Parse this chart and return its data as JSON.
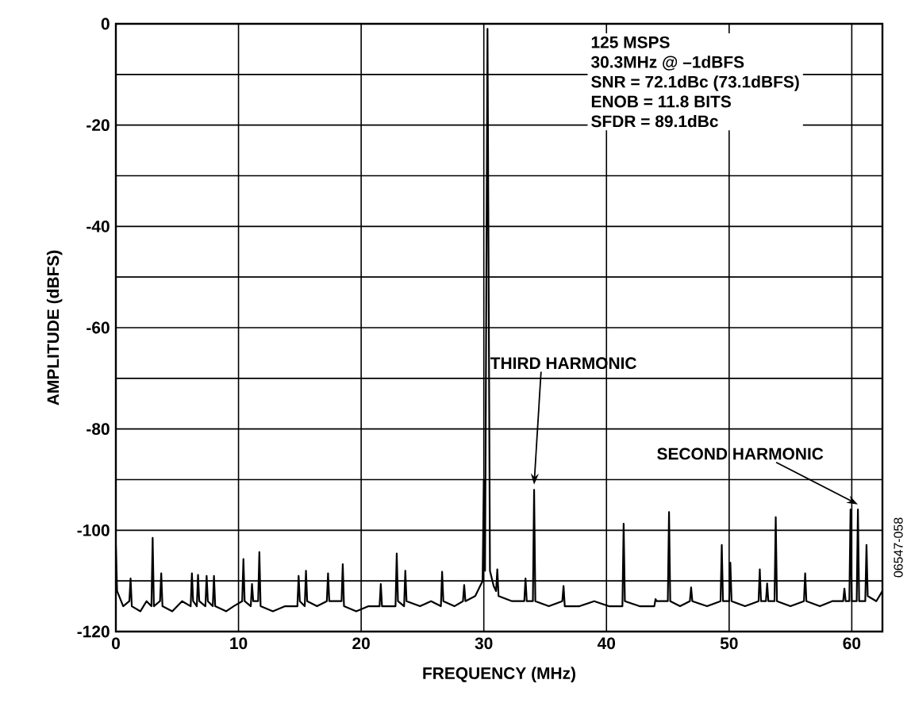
{
  "chart_data": {
    "type": "line",
    "xlabel": "FREQUENCY (MHz)",
    "ylabel": "AMPLITUDE (dBFS)",
    "xlim": [
      0,
      62.5
    ],
    "ylim": [
      -120,
      0
    ],
    "xticks": [
      0,
      10,
      20,
      30,
      40,
      50,
      60
    ],
    "yticks": [
      0,
      {
        "value": -10,
        "label": null
      },
      -20,
      {
        "value": -30,
        "label": null
      },
      -40,
      {
        "value": -50,
        "label": null
      },
      -60,
      {
        "value": -70,
        "label": null
      },
      -80,
      {
        "value": -90,
        "label": null
      },
      -100,
      {
        "value": -110,
        "label": null
      },
      -120
    ],
    "grid": true,
    "series": [
      {
        "color": "#000000",
        "x": [
          0,
          0.1,
          0.6,
          1.1,
          1.2,
          1.3,
          2.0,
          2.5,
          2.9,
          3.0,
          3.1,
          3.6,
          3.7,
          3.8,
          4.6,
          5.4,
          6.1,
          6.2,
          6.3,
          6.6,
          6.7,
          6.8,
          7.3,
          7.4,
          7.5,
          7.9,
          8.0,
          8.1,
          9.0,
          9.6,
          10.3,
          10.4,
          10.5,
          11.0,
          11.1,
          11.2,
          11.6,
          11.7,
          11.8,
          12.8,
          13.8,
          14.8,
          14.9,
          15.0,
          15.4,
          15.5,
          15.6,
          16.4,
          17.2,
          17.3,
          17.4,
          18.4,
          18.5,
          18.6,
          19.6,
          20.6,
          21.5,
          21.6,
          21.7,
          22.8,
          22.9,
          23.0,
          23.5,
          23.6,
          23.7,
          24.8,
          25.7,
          26.5,
          26.6,
          26.7,
          27.6,
          28.3,
          28.4,
          28.5,
          29.3,
          29.9,
          30.0,
          30.1,
          30.3,
          30.5,
          30.8,
          31.0,
          31.1,
          31.2,
          32.3,
          33.3,
          33.4,
          33.5,
          34.0,
          34.1,
          34.2,
          35.3,
          36.4,
          36.5,
          36.6,
          37.8,
          39.0,
          40.2,
          41.3,
          41.4,
          41.5,
          42.7,
          43.9,
          44.0,
          44.1,
          45.0,
          45.1,
          45.2,
          46.0,
          46.8,
          46.9,
          47.0,
          48.2,
          49.3,
          49.4,
          49.5,
          50.0,
          50.1,
          50.2,
          51.3,
          52.4,
          52.5,
          52.6,
          53.0,
          53.1,
          53.2,
          53.7,
          53.8,
          53.9,
          55.0,
          56.1,
          56.2,
          56.3,
          57.4,
          58.4,
          59.3,
          59.4,
          59.5,
          59.8,
          59.9,
          60.0,
          60.4,
          60.5,
          60.6,
          61.1,
          61.2,
          61.3,
          62.0,
          62.5
        ],
        "values": [
          -103,
          -112,
          -115,
          -114,
          -109.5,
          -115,
          -116,
          -114,
          -115,
          -101.5,
          -115,
          -114,
          -108.5,
          -115,
          -116,
          -114,
          -115,
          -108.5,
          -114,
          -115,
          -108.8,
          -114,
          -115,
          -109,
          -114,
          -115,
          -109,
          -115,
          -116,
          -115,
          -114,
          -105.7,
          -114,
          -115,
          -110.6,
          -114,
          -114,
          -104.3,
          -115,
          -116,
          -115,
          -115,
          -109,
          -114,
          -115,
          -108,
          -114,
          -115,
          -114,
          -108.5,
          -114,
          -114,
          -106.7,
          -115,
          -116,
          -115,
          -115,
          -110.6,
          -115,
          -115,
          -104.6,
          -114,
          -115,
          -108,
          -114,
          -115,
          -114,
          -115,
          -108.2,
          -114,
          -115,
          -114,
          -110.8,
          -114,
          -113,
          -110,
          -90,
          -108,
          -1,
          -108,
          -111,
          -112,
          -107.7,
          -113,
          -114,
          -114,
          -109.5,
          -114,
          -114,
          -92,
          -114,
          -115,
          -114,
          -111,
          -115,
          -115,
          -114,
          -115,
          -115,
          -98.7,
          -114,
          -115,
          -115,
          -113.6,
          -114,
          -114,
          -96.4,
          -114,
          -115,
          -114,
          -111.3,
          -114,
          -115,
          -114,
          -102.9,
          -114,
          -114,
          -106.4,
          -114,
          -115,
          -114,
          -107.7,
          -114,
          -114,
          -110.5,
          -114,
          -114,
          -97.4,
          -114,
          -115,
          -114,
          -108.5,
          -114,
          -115,
          -114,
          -114,
          -111.5,
          -114,
          -114,
          -95.9,
          -114,
          -114,
          -95.9,
          -114,
          -114,
          -102.9,
          -113,
          -114,
          -112
        ]
      }
    ],
    "annotations": [
      "125 MSPS",
      "30.3MHz @ –1dBFS",
      "SNR = 72.1dBc (73.1dBFS)",
      "ENOB = 11.8 BITS",
      "SFDR = 89.1dBc",
      {
        "text": "THIRD HARMONIC",
        "x": 34.1,
        "y": -92
      },
      {
        "text": "SECOND HARMONIC",
        "x": 60.5,
        "y": -95.9
      },
      "06547-058"
    ]
  }
}
